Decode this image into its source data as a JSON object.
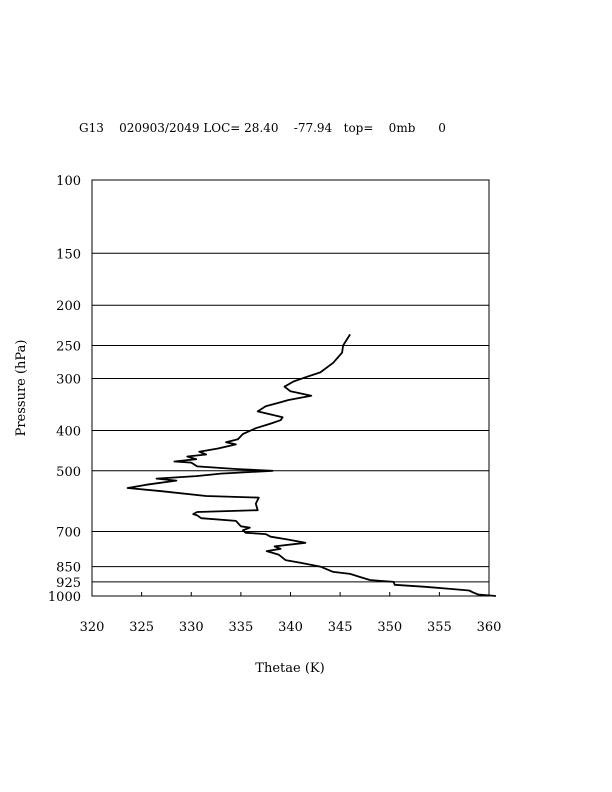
{
  "header": {
    "text": "G13    020903/2049 LOC= 28.40    -77.94   top=    0mb      0"
  },
  "chart_data": {
    "type": "line",
    "xlabel": "Thetae (K)",
    "ylabel": "Pressure (hPa)",
    "xlim": [
      320,
      360
    ],
    "ylim": [
      1000,
      100
    ],
    "y_scale": "log",
    "grid": "horizontal lines at pressure ticks",
    "x_ticks": [
      "320",
      "325",
      "330",
      "335",
      "340",
      "345",
      "350",
      "355",
      "360"
    ],
    "y_ticks": [
      {
        "value": 100,
        "label": "100"
      },
      {
        "value": 150,
        "label": "150"
      },
      {
        "value": 200,
        "label": "200"
      },
      {
        "value": 250,
        "label": "250"
      },
      {
        "value": 300,
        "label": "300"
      },
      {
        "value": 400,
        "label": "400"
      },
      {
        "value": 500,
        "label": "500"
      },
      {
        "value": 700,
        "label": "700"
      },
      {
        "value": 850,
        "label": "850"
      },
      {
        "value": 925,
        "label": "925"
      },
      {
        "value": 1000,
        "label": "1000"
      }
    ],
    "series": [
      {
        "points": [
          [
            360.7,
            1000
          ],
          [
            358.9,
            992
          ],
          [
            358.4,
            980
          ],
          [
            358.0,
            970
          ],
          [
            355.8,
            960
          ],
          [
            353.4,
            950
          ],
          [
            350.5,
            940
          ],
          [
            350.4,
            925
          ],
          [
            348.0,
            915
          ],
          [
            347.0,
            900
          ],
          [
            346.0,
            885
          ],
          [
            344.3,
            875
          ],
          [
            343.0,
            850
          ],
          [
            341.0,
            832
          ],
          [
            339.5,
            820
          ],
          [
            338.8,
            795
          ],
          [
            337.6,
            780
          ],
          [
            339.0,
            770
          ],
          [
            338.4,
            760
          ],
          [
            341.5,
            745
          ],
          [
            339.5,
            730
          ],
          [
            338.0,
            720
          ],
          [
            337.5,
            710
          ],
          [
            335.5,
            705
          ],
          [
            335.2,
            695
          ],
          [
            335.9,
            685
          ],
          [
            335.0,
            680
          ],
          [
            334.5,
            660
          ],
          [
            331.0,
            650
          ],
          [
            330.6,
            640
          ],
          [
            330.2,
            635
          ],
          [
            330.6,
            628
          ],
          [
            336.7,
            622
          ],
          [
            336.5,
            600
          ],
          [
            336.8,
            580
          ],
          [
            331.5,
            575
          ],
          [
            327.0,
            560
          ],
          [
            323.6,
            550
          ],
          [
            325.5,
            540
          ],
          [
            328.5,
            528
          ],
          [
            326.5,
            522
          ],
          [
            330.5,
            515
          ],
          [
            333.0,
            508
          ],
          [
            338.2,
            500
          ],
          [
            334.5,
            495
          ],
          [
            330.6,
            488
          ],
          [
            330.0,
            478
          ],
          [
            328.3,
            475
          ],
          [
            330.5,
            469
          ],
          [
            329.6,
            462
          ],
          [
            331.5,
            457
          ],
          [
            330.8,
            450
          ],
          [
            332.7,
            442
          ],
          [
            334.5,
            432
          ],
          [
            333.5,
            427
          ],
          [
            334.7,
            420
          ],
          [
            335.2,
            408
          ],
          [
            336.5,
            395
          ],
          [
            338.0,
            385
          ],
          [
            339.0,
            378
          ],
          [
            339.2,
            372
          ],
          [
            336.7,
            360
          ],
          [
            337.5,
            350
          ],
          [
            339.0,
            342
          ],
          [
            339.8,
            338
          ],
          [
            342.1,
            330
          ],
          [
            340.0,
            322
          ],
          [
            339.4,
            314
          ],
          [
            340.3,
            305
          ],
          [
            341.5,
            298
          ],
          [
            343.0,
            290
          ],
          [
            344.3,
            275
          ],
          [
            345.2,
            260
          ],
          [
            345.3,
            250
          ],
          [
            346.0,
            235
          ]
        ]
      }
    ]
  }
}
